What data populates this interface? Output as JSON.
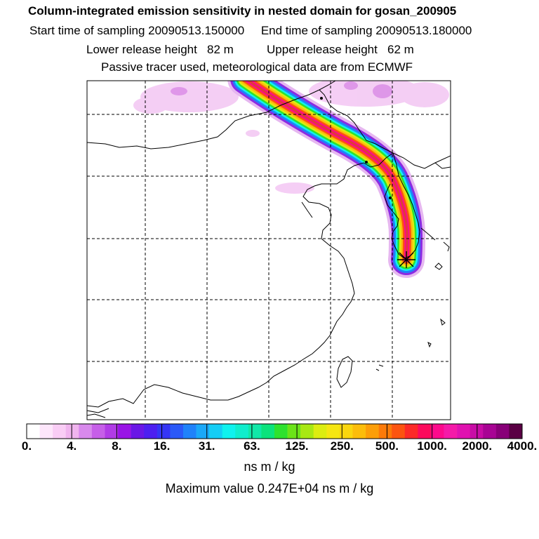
{
  "header": {
    "title": "Column-integrated emission sensitivity in nested domain for gosan_200905",
    "sampling_line": "Start time of sampling 20090513.150000     End time of sampling 20090513.180000",
    "release_line": "Lower release height   82 m          Upper release height   62 m",
    "tracer_line": "Passive tracer used, meteorological data are from ECMWF"
  },
  "colorbar": {
    "colors": [
      "#ffffff",
      "#fde6fb",
      "#f9cdf5",
      "#f0b4ee",
      "#d889ec",
      "#c65fe8",
      "#b13ce6",
      "#9914e6",
      "#6a17e6",
      "#4d1ff0",
      "#3535f5",
      "#2a59f8",
      "#1f82fa",
      "#1aa8f8",
      "#14cdf5",
      "#0ff2ee",
      "#10edcc",
      "#10e8a8",
      "#0be37c",
      "#2ee22e",
      "#6be418",
      "#a8e812",
      "#dced10",
      "#f5e612",
      "#fad60e",
      "#fcbd0a",
      "#fc9e08",
      "#fc7a08",
      "#fc5410",
      "#fc2a28",
      "#fc0a5c",
      "#fc0a8c",
      "#f41aa8",
      "#e012b0",
      "#c80ca6",
      "#a80494",
      "#880078",
      "#5a0044"
    ],
    "tick_labels": [
      "0.",
      "4.",
      "8.",
      "16.",
      "31.",
      "63.",
      "125.",
      "250.",
      "500.",
      "1000.",
      "2000.",
      "4000."
    ],
    "units": "ns m / kg"
  },
  "map": {
    "receptor_marker": "asterisk-icon",
    "plume_colors": [
      "#e6b7f0",
      "#8a2be2",
      "#1f82fa",
      "#0ff2ee",
      "#2ee22e",
      "#dced10",
      "#fcbd0a",
      "#fc5410",
      "#fc0a8c",
      "#e03a3a"
    ]
  },
  "footer": {
    "max_value": "Maximum value  0.247E+04 ns m / kg"
  }
}
